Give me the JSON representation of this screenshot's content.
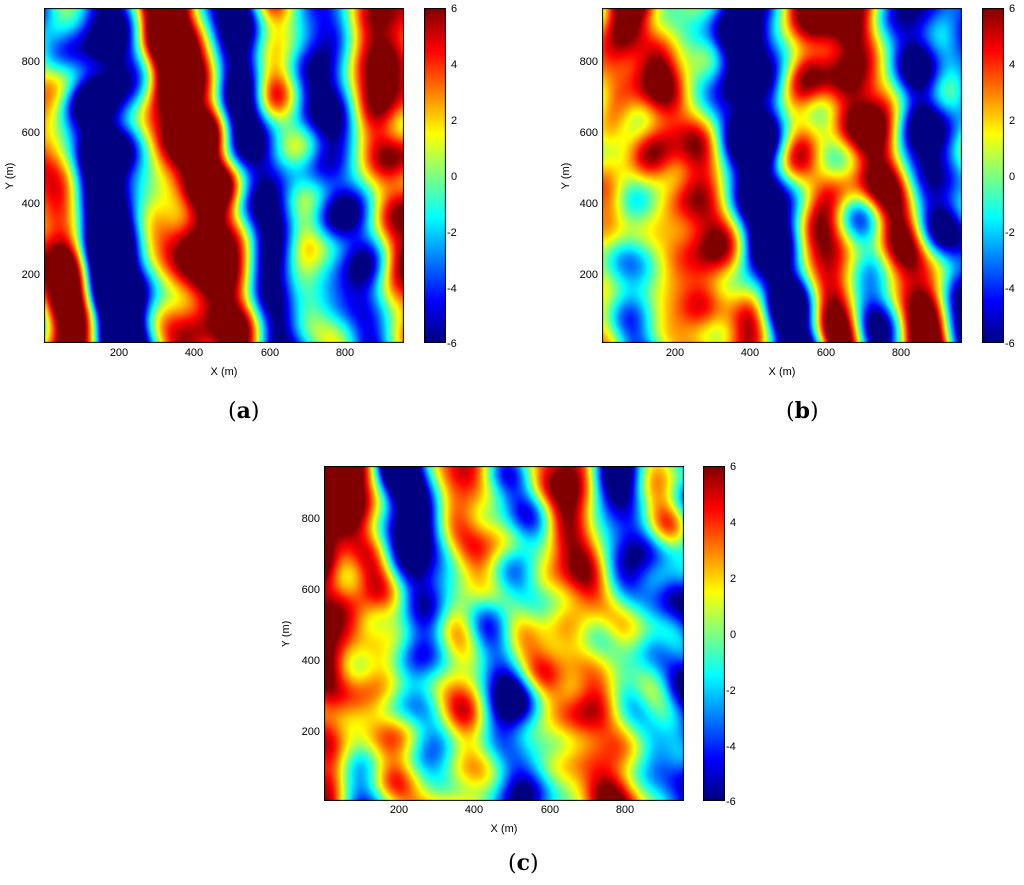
{
  "chart_data": [
    {
      "type": "heatmap",
      "panel_label": "a",
      "xlabel": "X (m)",
      "ylabel": "Y (m)",
      "xlim": [
        0,
        950
      ],
      "ylim": [
        0,
        950
      ],
      "x_ticks": [
        "200",
        "400",
        "600",
        "800"
      ],
      "y_ticks": [
        "200",
        "400",
        "600",
        "800"
      ],
      "colorbar": {
        "min": -6,
        "max": 6,
        "ticks": [
          "6",
          "4",
          "2",
          "0",
          "-2",
          "-4",
          "-6"
        ]
      },
      "colormap": "jet",
      "seed": 11,
      "field_scale": 1.0
    },
    {
      "type": "heatmap",
      "panel_label": "b",
      "xlabel": "X (m)",
      "ylabel": "Y (m)",
      "xlim": [
        0,
        950
      ],
      "ylim": [
        0,
        950
      ],
      "x_ticks": [
        "200",
        "400",
        "600",
        "800"
      ],
      "y_ticks": [
        "200",
        "400",
        "600",
        "800"
      ],
      "colorbar": {
        "min": -6,
        "max": 6,
        "ticks": [
          "6",
          "4",
          "2",
          "0",
          "-2",
          "-4",
          "-6"
        ]
      },
      "colormap": "jet",
      "seed": 29,
      "field_scale": 1.0
    },
    {
      "type": "heatmap",
      "panel_label": "c",
      "xlabel": "X (m)",
      "ylabel": "Y (m)",
      "xlim": [
        0,
        950
      ],
      "ylim": [
        0,
        950
      ],
      "x_ticks": [
        "200",
        "400",
        "600",
        "800"
      ],
      "y_ticks": [
        "200",
        "400",
        "600",
        "800"
      ],
      "colorbar": {
        "min": -6,
        "max": 6,
        "ticks": [
          "6",
          "4",
          "2",
          "0",
          "-2",
          "-4",
          "-6"
        ]
      },
      "colormap": "jet",
      "seed": 47,
      "field_scale": 1.0
    }
  ]
}
